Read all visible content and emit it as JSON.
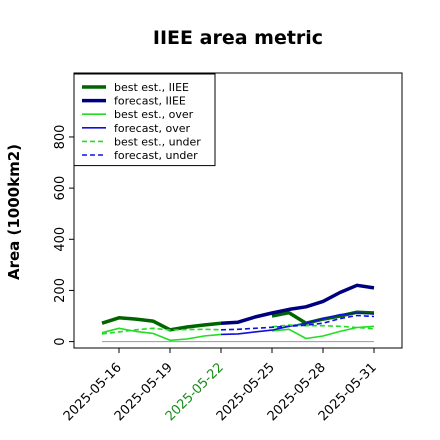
{
  "chart_data": {
    "type": "line",
    "title": "IIEE area metric",
    "xlabel": "",
    "ylabel": "Area (1000km2)",
    "x": [
      "2025-05-15",
      "2025-05-16",
      "2025-05-17",
      "2025-05-18",
      "2025-05-19",
      "2025-05-20",
      "2025-05-21",
      "2025-05-22",
      "2025-05-23",
      "2025-05-24",
      "2025-05-25",
      "2025-05-26",
      "2025-05-27",
      "2025-05-28",
      "2025-05-29",
      "2025-05-30",
      "2025-05-31"
    ],
    "x_tick_labels": [
      "2025-05-16",
      "2025-05-19",
      "2025-05-22",
      "2025-05-25",
      "2025-05-28",
      "2025-05-31"
    ],
    "x_tick_highlight": "2025-05-22",
    "ylim": [
      -25,
      1050
    ],
    "y_ticks": [
      0,
      200,
      400,
      600,
      800
    ],
    "legend_position": "top-left",
    "grid": false,
    "series": [
      {
        "name": "best est., IIEE",
        "color": "#006400",
        "style": "solid",
        "width": "thick",
        "values": [
          72,
          93,
          88,
          80,
          46,
          57,
          65,
          72,
          null,
          null,
          100,
          113,
          72,
          88,
          100,
          115,
          112
        ]
      },
      {
        "name": "forecast, IIEE",
        "color": "#00007f",
        "style": "solid",
        "width": "thick",
        "values": [
          null,
          null,
          null,
          null,
          null,
          null,
          null,
          72,
          76,
          96,
          112,
          126,
          136,
          157,
          192,
          220,
          210
        ]
      },
      {
        "name": "best est., over",
        "color": "#22dd22",
        "style": "solid",
        "width": "thin",
        "values": [
          35,
          52,
          40,
          32,
          5,
          10,
          22,
          28,
          null,
          null,
          42,
          48,
          12,
          22,
          40,
          55,
          60
        ]
      },
      {
        "name": "forecast, over",
        "color": "#1010dd",
        "style": "solid",
        "width": "thin",
        "values": [
          null,
          null,
          null,
          null,
          null,
          null,
          null,
          28,
          30,
          38,
          45,
          60,
          72,
          90,
          105,
          112,
          108
        ]
      },
      {
        "name": "best est., under",
        "color": "#22dd22",
        "style": "dashed",
        "width": "thin",
        "values": [
          30,
          38,
          46,
          52,
          45,
          47,
          48,
          46,
          null,
          null,
          58,
          65,
          62,
          62,
          60,
          55,
          50
        ]
      },
      {
        "name": "forecast, under",
        "color": "#1010dd",
        "style": "dashed",
        "width": "thin",
        "values": [
          null,
          null,
          null,
          null,
          null,
          null,
          null,
          46,
          48,
          52,
          56,
          60,
          64,
          72,
          90,
          102,
          98
        ]
      }
    ],
    "zero_line_color": "#999999"
  }
}
